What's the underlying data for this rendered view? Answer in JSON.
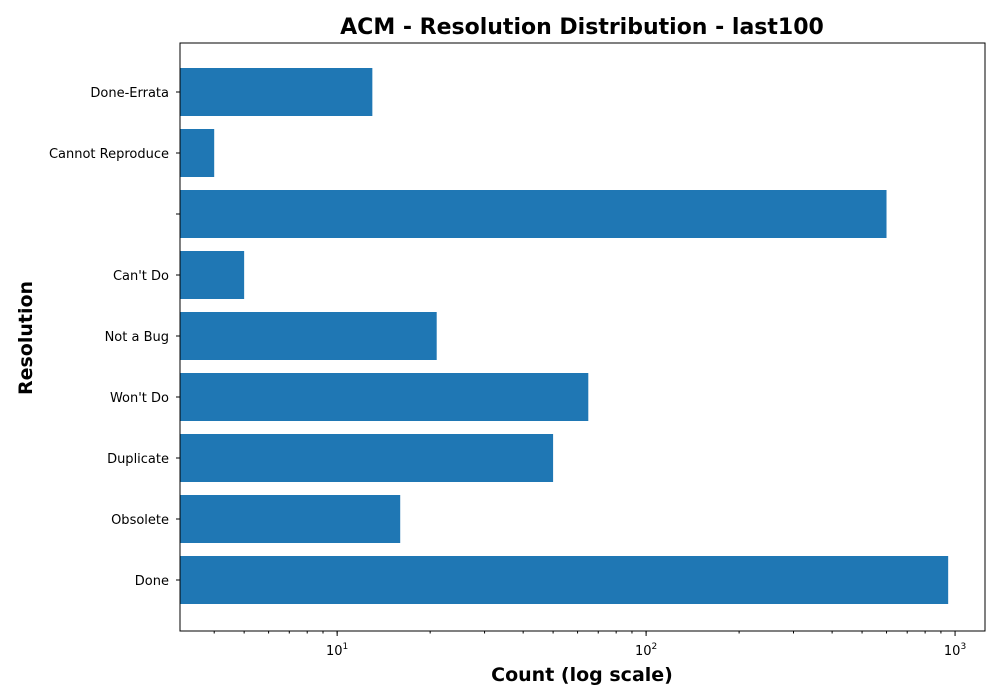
{
  "chart_data": {
    "type": "bar",
    "orientation": "horizontal",
    "title": "ACM - Resolution Distribution - last100",
    "xlabel": "Count (log scale)",
    "ylabel": "Resolution",
    "x_scale": "log",
    "xlim": [
      3.1,
      1250
    ],
    "x_ticks": [
      {
        "value": 10,
        "base": "10",
        "exp": "1"
      },
      {
        "value": 100,
        "base": "10",
        "exp": "2"
      },
      {
        "value": 1000,
        "base": "10",
        "exp": "3"
      }
    ],
    "color": "#1f77b4",
    "categories": [
      "Done",
      "Obsolete",
      "Duplicate",
      "Won't Do",
      "Not a Bug",
      "Can't Do",
      "",
      "Cannot Reproduce",
      "Done-Errata"
    ],
    "values": [
      950,
      16,
      50,
      65,
      21,
      5,
      600,
      4,
      13
    ],
    "grid": false
  }
}
